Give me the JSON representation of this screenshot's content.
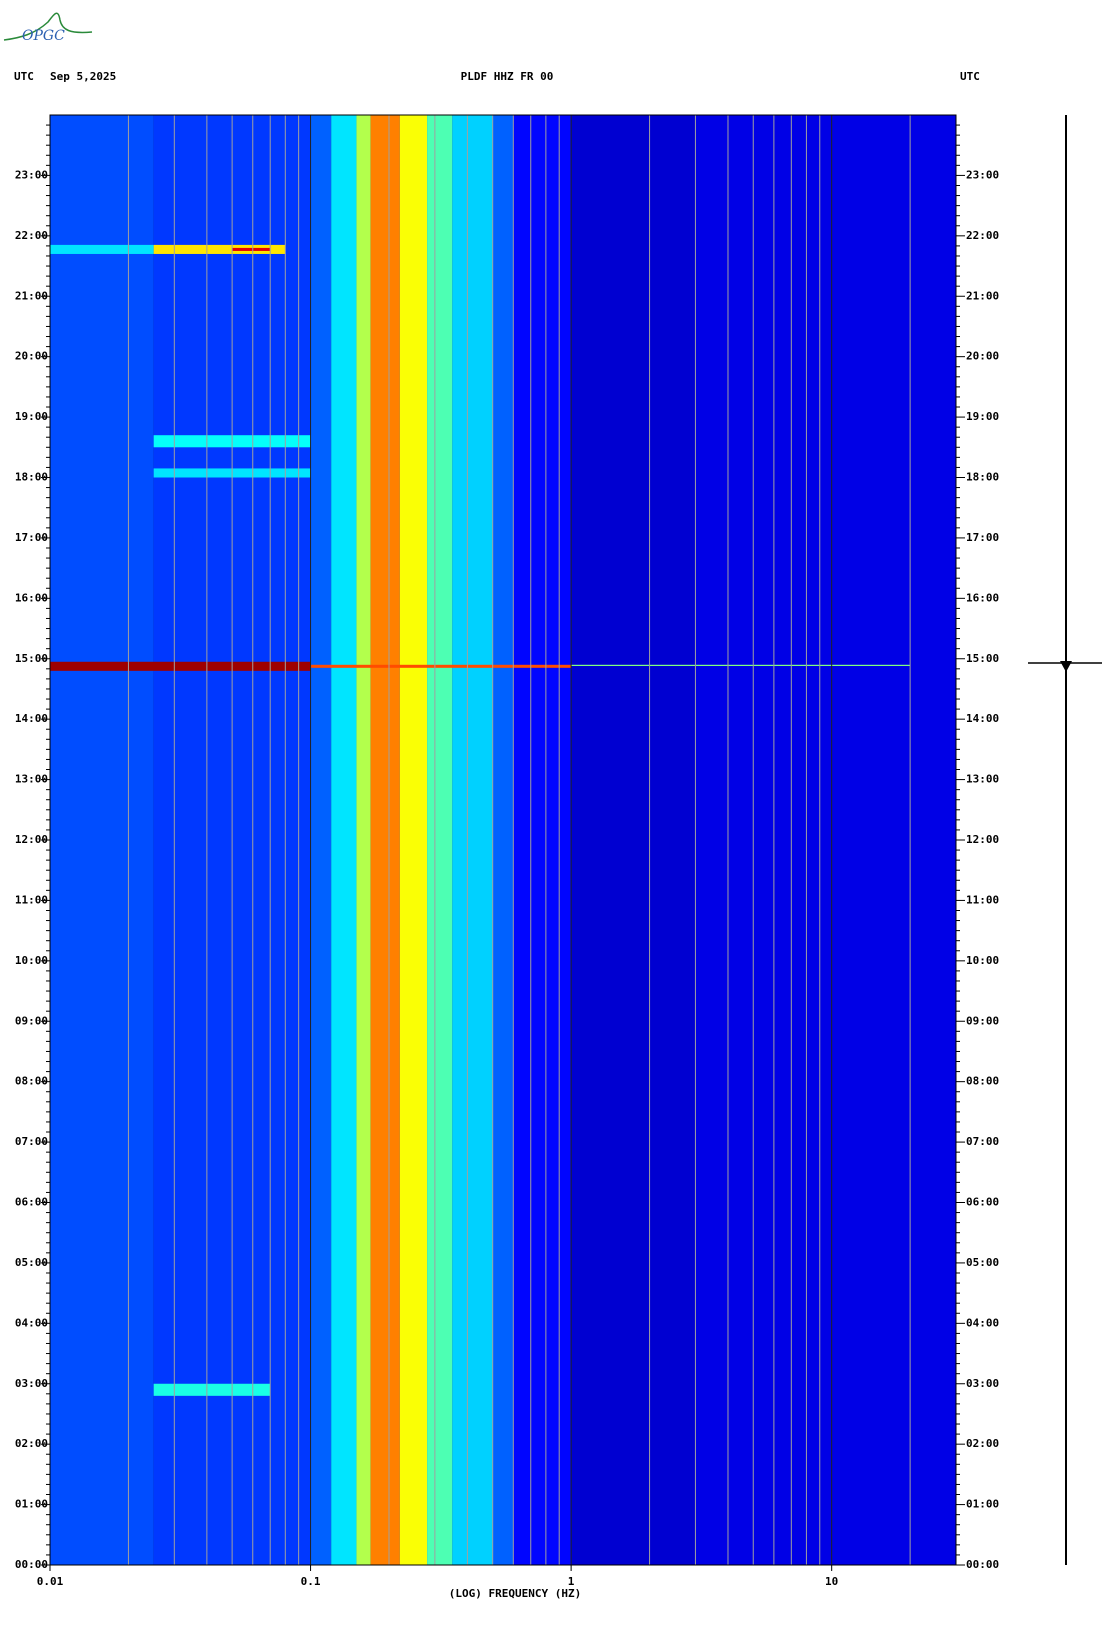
{
  "logo": "OPGC",
  "chart_data": {
    "type": "spectrogram",
    "title": "PLDF HHZ FR 00",
    "date": "Sep 5,2025",
    "time_zone_left": "UTC",
    "time_zone_right": "UTC",
    "x_label": "(LOG) FREQUENCY (HZ)",
    "xscale": "log",
    "xlim": [
      0.01,
      30
    ],
    "xticks": [
      0.01,
      0.1,
      1,
      10
    ],
    "xminor": [
      0.02,
      0.03,
      0.04,
      0.05,
      0.06,
      0.07,
      0.08,
      0.09,
      0.2,
      0.3,
      0.4,
      0.5,
      0.6,
      0.7,
      0.8,
      0.9,
      2,
      3,
      4,
      5,
      6,
      7,
      8,
      9,
      20
    ],
    "ylim": [
      0,
      24
    ],
    "yticks": [
      {
        "value": 0,
        "label": "00:00"
      },
      {
        "value": 1,
        "label": "01:00"
      },
      {
        "value": 2,
        "label": "02:00"
      },
      {
        "value": 3,
        "label": "03:00"
      },
      {
        "value": 4,
        "label": "04:00"
      },
      {
        "value": 5,
        "label": "05:00"
      },
      {
        "value": 6,
        "label": "06:00"
      },
      {
        "value": 7,
        "label": "07:00"
      },
      {
        "value": 8,
        "label": "08:00"
      },
      {
        "value": 9,
        "label": "09:00"
      },
      {
        "value": 10,
        "label": "10:00"
      },
      {
        "value": 11,
        "label": "11:00"
      },
      {
        "value": 12,
        "label": "12:00"
      },
      {
        "value": 13,
        "label": "13:00"
      },
      {
        "value": 14,
        "label": "14:00"
      },
      {
        "value": 15,
        "label": "15:00"
      },
      {
        "value": 16,
        "label": "16:00"
      },
      {
        "value": 17,
        "label": "17:00"
      },
      {
        "value": 18,
        "label": "18:00"
      },
      {
        "value": 19,
        "label": "19:00"
      },
      {
        "value": 20,
        "label": "20:00"
      },
      {
        "value": 21,
        "label": "21:00"
      },
      {
        "value": 22,
        "label": "22:00"
      },
      {
        "value": 23,
        "label": "23:00"
      }
    ],
    "freq_edges": [
      0.01,
      0.025,
      0.1,
      0.12,
      0.15,
      0.17,
      0.22,
      0.28,
      0.35,
      0.5,
      0.6,
      1,
      3,
      30
    ],
    "levels": [
      0.2,
      0.18,
      0.22,
      0.35,
      0.55,
      0.75,
      0.62,
      0.45,
      0.33,
      0.22,
      0.13,
      0.08,
      0.1
    ],
    "bursts": [
      {
        "t0": 21.7,
        "t1": 21.85,
        "f0": 0.01,
        "f1": 0.025,
        "level": 0.35
      },
      {
        "t0": 21.7,
        "t1": 21.85,
        "f0": 0.025,
        "f1": 0.08,
        "level": 0.65
      },
      {
        "t0": 21.75,
        "t1": 21.8,
        "f0": 0.05,
        "f1": 0.07,
        "level": 0.9
      },
      {
        "t0": 18.5,
        "t1": 18.7,
        "f0": 0.025,
        "f1": 0.1,
        "level": 0.38
      },
      {
        "t0": 18.0,
        "t1": 18.15,
        "f0": 0.025,
        "f1": 0.1,
        "level": 0.35
      },
      {
        "t0": 14.8,
        "t1": 14.95,
        "f0": 0.01,
        "f1": 0.1,
        "level": 0.97
      },
      {
        "t0": 14.85,
        "t1": 14.9,
        "f0": 0.1,
        "f1": 1,
        "level": 0.8
      },
      {
        "t0": 14.88,
        "t1": 14.9,
        "f0": 1,
        "f1": 20,
        "level": 0.5
      },
      {
        "t0": 2.8,
        "t1": 3.0,
        "f0": 0.025,
        "f1": 0.07,
        "level": 0.4
      }
    ]
  }
}
